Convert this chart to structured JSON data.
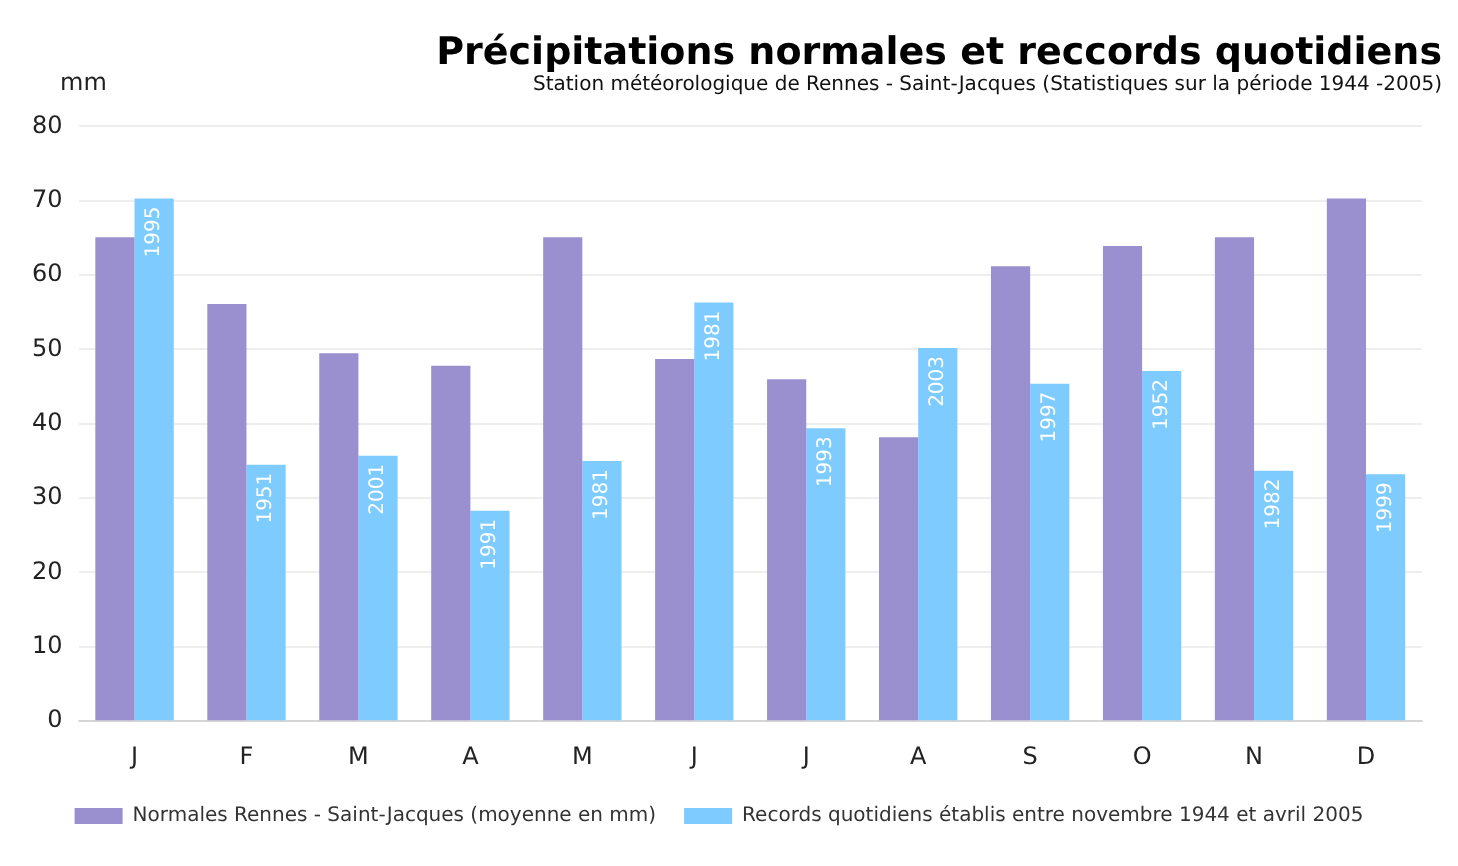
{
  "chart_data": {
    "type": "bar",
    "title": "Précipitations normales et reccords quotidiens",
    "subtitle": "Station météorologique de Rennes - Saint-Jacques (Statistiques sur la période 1944 -2005)",
    "ylabel": "mm",
    "categories": [
      "J",
      "F",
      "M",
      "A",
      "M",
      "J",
      "J",
      "A",
      "S",
      "O",
      "N",
      "D"
    ],
    "series": [
      {
        "name": "Normales Rennes - Saint-Jacques (moyenne en mm)",
        "color": "#9a8fcf",
        "values": [
          65.1,
          56.1,
          49.5,
          47.8,
          65.1,
          48.7,
          46.0,
          38.2,
          61.2,
          63.9,
          65.1,
          70.3
        ]
      },
      {
        "name": "Records quotidiens établis entre novembre 1944 et avril 2005",
        "color": "#7ecbff",
        "values": [
          70.3,
          34.5,
          35.7,
          28.3,
          35.0,
          56.3,
          39.4,
          50.2,
          45.4,
          47.1,
          33.7,
          33.2
        ]
      }
    ],
    "annotations": [
      "1995",
      "1951",
      "2001",
      "1991",
      "1981",
      "1981",
      "1993",
      "2003",
      "1997",
      "1952",
      "1982",
      "1999"
    ],
    "ylim": [
      0,
      80
    ],
    "yticks": [
      0,
      10,
      20,
      30,
      40,
      50,
      60,
      70,
      80
    ],
    "grid": "y",
    "legend": "bottom"
  }
}
